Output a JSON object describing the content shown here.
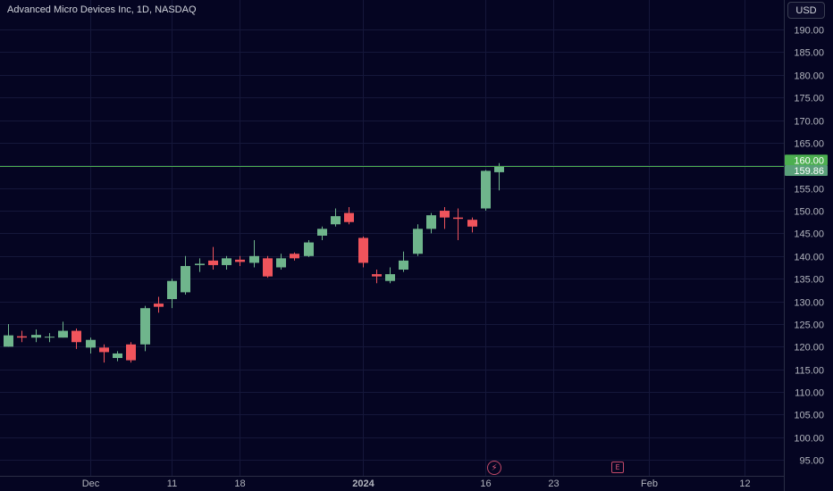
{
  "header": {
    "title": "Advanced Micro Devices Inc, 1D, NASDAQ"
  },
  "toolbar": {
    "currency_label": "USD"
  },
  "colors": {
    "background": "#050522",
    "grid": "#15173a",
    "up": "#6fb58c",
    "down": "#f0545c",
    "line": "#4caf50",
    "axis_text": "#b2b5be"
  },
  "events": {
    "dividend_icon": "lightning-icon",
    "earnings_label": "E"
  },
  "chart_data": {
    "type": "candlestick",
    "title": "Advanced Micro Devices Inc, 1D, NASDAQ",
    "ylim": [
      91.5,
      196.5
    ],
    "y_ticks": [
      "95.00",
      "100.00",
      "105.00",
      "110.00",
      "115.00",
      "120.00",
      "125.00",
      "130.00",
      "135.00",
      "140.00",
      "145.00",
      "150.00",
      "155.00",
      "160.00",
      "165.00",
      "170.00",
      "175.00",
      "180.00",
      "185.00",
      "190.00"
    ],
    "x_ticks": [
      {
        "label": "Dec",
        "index": 6
      },
      {
        "label": "11",
        "index": 12
      },
      {
        "label": "18",
        "index": 17
      },
      {
        "label": "2024",
        "index": 26
      },
      {
        "label": "16",
        "index": 35
      },
      {
        "label": "23",
        "index": 40
      },
      {
        "label": "Feb",
        "index": 47
      },
      {
        "label": "12",
        "index": 54
      }
    ],
    "horizontal_line": {
      "value": 159.86
    },
    "price_labels": [
      {
        "text": "160.00",
        "value": 160.0,
        "style": "line"
      },
      {
        "text": "159.86",
        "value": 159.86,
        "style": "last"
      }
    ],
    "candles": [
      {
        "o": 120.0,
        "h": 125.0,
        "l": 120.0,
        "c": 122.5
      },
      {
        "o": 122.3,
        "h": 123.5,
        "l": 121.0,
        "c": 122.0
      },
      {
        "o": 122.0,
        "h": 123.8,
        "l": 121.0,
        "c": 122.6
      },
      {
        "o": 122.0,
        "h": 123.0,
        "l": 121.0,
        "c": 122.2
      },
      {
        "o": 122.0,
        "h": 125.5,
        "l": 122.0,
        "c": 123.5
      },
      {
        "o": 123.5,
        "h": 124.0,
        "l": 119.5,
        "c": 121.0
      },
      {
        "o": 119.8,
        "h": 122.0,
        "l": 118.5,
        "c": 121.5
      },
      {
        "o": 119.8,
        "h": 120.5,
        "l": 116.5,
        "c": 118.8
      },
      {
        "o": 117.5,
        "h": 119.0,
        "l": 116.8,
        "c": 118.5
      },
      {
        "o": 120.5,
        "h": 121.0,
        "l": 116.5,
        "c": 117.0
      },
      {
        "o": 120.5,
        "h": 129.0,
        "l": 119.0,
        "c": 128.5
      },
      {
        "o": 129.5,
        "h": 131.0,
        "l": 127.5,
        "c": 128.8
      },
      {
        "o": 130.5,
        "h": 135.0,
        "l": 128.5,
        "c": 134.5
      },
      {
        "o": 132.0,
        "h": 140.0,
        "l": 131.5,
        "c": 137.8
      },
      {
        "o": 138.0,
        "h": 139.5,
        "l": 136.5,
        "c": 138.3
      },
      {
        "o": 139.0,
        "h": 142.0,
        "l": 137.0,
        "c": 138.0
      },
      {
        "o": 138.0,
        "h": 140.0,
        "l": 137.0,
        "c": 139.5
      },
      {
        "o": 139.2,
        "h": 140.0,
        "l": 137.8,
        "c": 138.7
      },
      {
        "o": 138.5,
        "h": 143.5,
        "l": 137.5,
        "c": 140.0
      },
      {
        "o": 139.5,
        "h": 140.0,
        "l": 135.2,
        "c": 135.5
      },
      {
        "o": 137.5,
        "h": 140.5,
        "l": 137.0,
        "c": 139.5
      },
      {
        "o": 140.5,
        "h": 140.8,
        "l": 139.0,
        "c": 139.5
      },
      {
        "o": 140.0,
        "h": 143.5,
        "l": 139.8,
        "c": 143.0
      },
      {
        "o": 144.5,
        "h": 146.5,
        "l": 143.5,
        "c": 146.0
      },
      {
        "o": 147.0,
        "h": 150.5,
        "l": 146.5,
        "c": 148.8
      },
      {
        "o": 149.5,
        "h": 150.8,
        "l": 147.0,
        "c": 147.5
      },
      {
        "o": 144.0,
        "h": 144.3,
        "l": 137.5,
        "c": 138.5
      },
      {
        "o": 136.0,
        "h": 137.0,
        "l": 134.0,
        "c": 135.5
      },
      {
        "o": 134.5,
        "h": 137.5,
        "l": 134.0,
        "c": 136.0
      },
      {
        "o": 137.0,
        "h": 141.0,
        "l": 136.5,
        "c": 139.0
      },
      {
        "o": 140.5,
        "h": 147.0,
        "l": 140.0,
        "c": 146.0
      },
      {
        "o": 146.0,
        "h": 149.5,
        "l": 145.0,
        "c": 149.0
      },
      {
        "o": 150.0,
        "h": 150.8,
        "l": 146.0,
        "c": 148.5
      },
      {
        "o": 148.5,
        "h": 150.5,
        "l": 143.5,
        "c": 148.2
      },
      {
        "o": 148.0,
        "h": 148.5,
        "l": 145.2,
        "c": 146.5
      },
      {
        "o": 150.5,
        "h": 159.0,
        "l": 150.0,
        "c": 158.8
      },
      {
        "o": 158.5,
        "h": 160.5,
        "l": 154.5,
        "c": 159.86
      }
    ]
  }
}
